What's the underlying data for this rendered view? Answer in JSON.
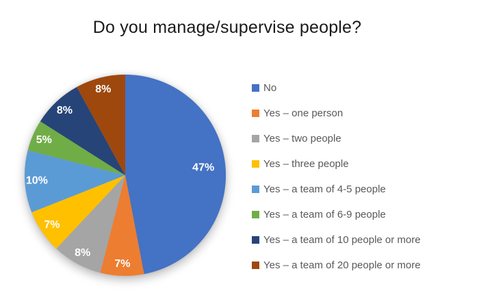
{
  "chart_data": {
    "type": "pie",
    "title": "Do you manage/supervise people?",
    "categories": [
      "No",
      "Yes – one person",
      "Yes – two people",
      "Yes – three people",
      "Yes – a team of 4-5 people",
      "Yes – a team of 6-9 people",
      "Yes – a team of 10 people or more",
      "Yes – a team of 20 people or more"
    ],
    "values": [
      47,
      7,
      8,
      7,
      10,
      5,
      8,
      8
    ],
    "value_labels": [
      "47%",
      "7%",
      "8%",
      "7%",
      "10%",
      "5%",
      "8%",
      "8%"
    ],
    "colors": [
      "#4472C4",
      "#ED7D31",
      "#A5A5A5",
      "#FFC000",
      "#5B9BD5",
      "#70AD47",
      "#264478",
      "#9E480E"
    ],
    "unit": "%",
    "start_angle": "top",
    "direction": "clockwise",
    "legend_position": "right",
    "slice_label_color": "#FFFFFF",
    "legend_text_color": "#595959",
    "title_color": "#1A1A1A",
    "background": "#FFFFFF"
  }
}
